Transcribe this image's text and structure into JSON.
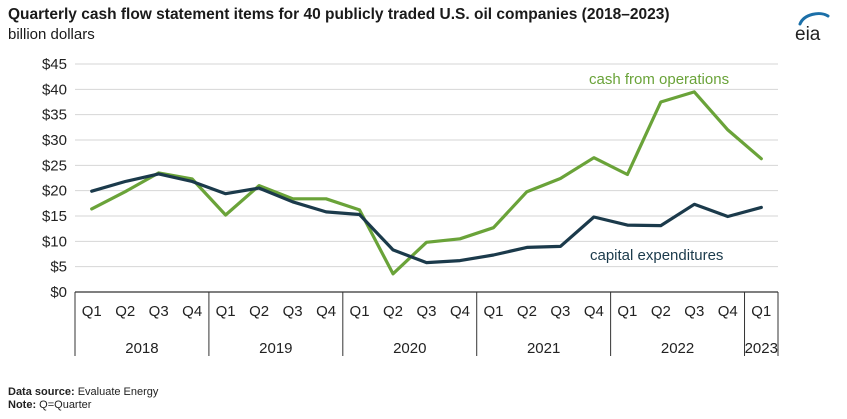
{
  "header": {
    "title": "Quarterly cash flow statement items for 40 publicly traded U.S. oil companies (2018–2023)",
    "subtitle": "billion dollars",
    "logo_text": "eia"
  },
  "footer": {
    "source_label": "Data source:",
    "source_value": " Evaluate Energy",
    "note_label": "Note:",
    "note_value": " Q=Quarter"
  },
  "colors": {
    "cash_from_operations": "#6aa339",
    "capital_expenditures": "#1b3a4b",
    "grid": "#d6d6d6",
    "axis": "#333333"
  },
  "chart_data": {
    "type": "line",
    "title": "Quarterly cash flow statement items for 40 publicly traded U.S. oil companies (2018–2023)",
    "ylabel": "billion dollars",
    "ylim": [
      0,
      45
    ],
    "yticks": [
      "$0",
      "$5",
      "$10",
      "$15",
      "$20",
      "$25",
      "$30",
      "$35",
      "$40",
      "$45"
    ],
    "grid": true,
    "categories": [
      "Q1",
      "Q2",
      "Q3",
      "Q4",
      "Q1",
      "Q2",
      "Q3",
      "Q4",
      "Q1",
      "Q2",
      "Q3",
      "Q4",
      "Q1",
      "Q2",
      "Q3",
      "Q4",
      "Q1",
      "Q2",
      "Q3",
      "Q4",
      "Q1"
    ],
    "years": [
      {
        "label": "2018",
        "quarters": 4
      },
      {
        "label": "2019",
        "quarters": 4
      },
      {
        "label": "2020",
        "quarters": 4
      },
      {
        "label": "2021",
        "quarters": 4
      },
      {
        "label": "2022",
        "quarters": 4
      },
      {
        "label": "2023",
        "quarters": 1
      }
    ],
    "series": [
      {
        "name": "cash from operations",
        "values": [
          16.4,
          19.8,
          23.5,
          22.3,
          15.2,
          21.0,
          18.4,
          18.4,
          16.2,
          3.6,
          9.8,
          10.5,
          12.7,
          19.8,
          22.4,
          26.5,
          23.2,
          37.5,
          39.5,
          32.0,
          26.3
        ]
      },
      {
        "name": "capital expenditures",
        "values": [
          19.9,
          21.8,
          23.3,
          21.8,
          19.4,
          20.5,
          17.8,
          15.8,
          15.3,
          8.3,
          5.8,
          6.2,
          7.3,
          8.8,
          9.0,
          14.8,
          13.2,
          13.1,
          17.3,
          14.9,
          16.7
        ]
      }
    ]
  }
}
